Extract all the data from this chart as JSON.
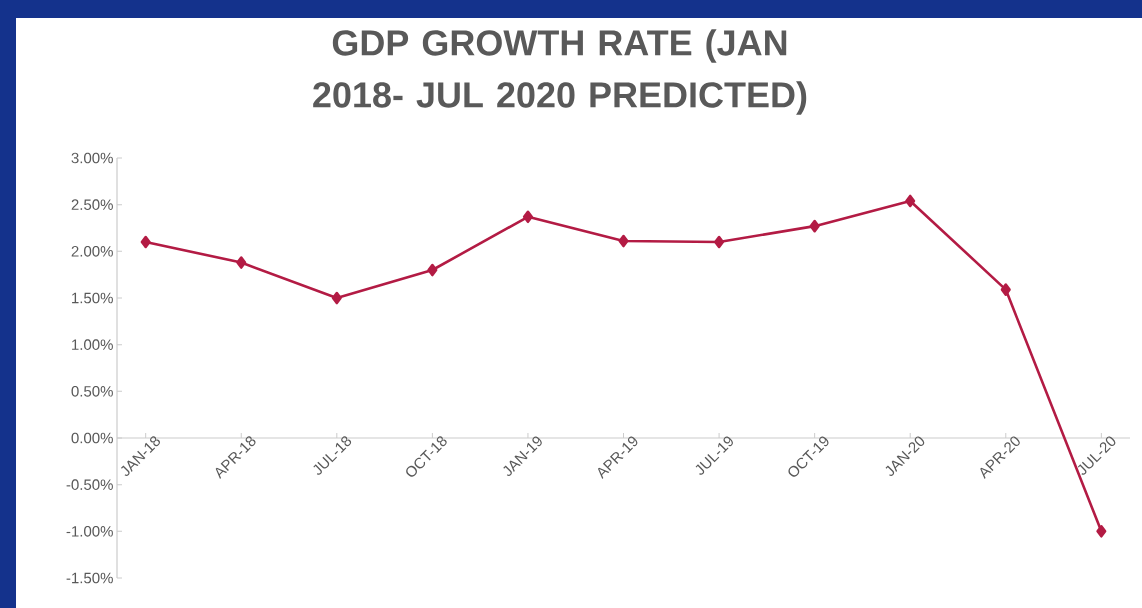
{
  "chart_data": {
    "type": "line",
    "title": "GDP GROWTH RATE (JAN 2018- JUL 2020 PREDICTED)",
    "categories": [
      "JAN-18",
      "APR-18",
      "JUL-18",
      "OCT-18",
      "JAN-19",
      "APR-19",
      "JUL-19",
      "OCT-19",
      "JAN-20",
      "APR-20",
      "JUL-20"
    ],
    "series": [
      {
        "color": "#b31b44",
        "values": [
          2.1,
          1.88,
          1.5,
          1.8,
          2.37,
          2.11,
          2.1,
          2.27,
          2.54,
          1.59,
          -1.0
        ]
      }
    ],
    "ylim": [
      -1.5,
      3
    ],
    "yticks": [
      {
        "value": -1.5,
        "label": "-1.50%"
      },
      {
        "value": -1,
        "label": "-1.00%"
      },
      {
        "value": -0.5,
        "label": "-0.50%"
      },
      {
        "value": 0,
        "label": "0.00%"
      },
      {
        "value": 0.5,
        "label": "0.50%"
      },
      {
        "value": 1,
        "label": "1.00%"
      },
      {
        "value": 1.5,
        "label": "1.50%"
      },
      {
        "value": 2,
        "label": "2.00%"
      },
      {
        "value": 2.5,
        "label": "2.50%"
      },
      {
        "value": 3,
        "label": "3.00%"
      }
    ],
    "marker": "diamond",
    "line_style": "solid",
    "grid": false
  }
}
